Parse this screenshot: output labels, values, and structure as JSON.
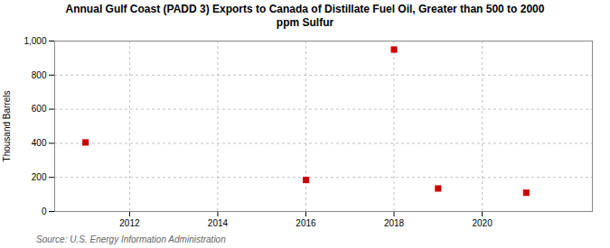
{
  "chart_data": {
    "type": "scatter",
    "title": "Annual Gulf Coast (PADD 3) Exports to Canada of Distillate Fuel Oil, Greater than 500 to 2000\nppm Sulfur",
    "ylabel": "Thousand Barrels",
    "source": "Source: U.S. Energy Information Administration",
    "x": [
      2011,
      2016,
      2018,
      2019,
      2021
    ],
    "values": [
      405,
      185,
      950,
      135,
      110
    ],
    "color": "#cc0000",
    "marker": "square",
    "xlim": [
      2010.3,
      2022.5
    ],
    "xticks": [
      2012,
      2014,
      2016,
      2018,
      2020
    ],
    "ylim": [
      0,
      1000
    ],
    "yticks": [
      0,
      200,
      400,
      600,
      800,
      {
        "value": 1000,
        "label": "1,000"
      }
    ],
    "grid": true
  }
}
